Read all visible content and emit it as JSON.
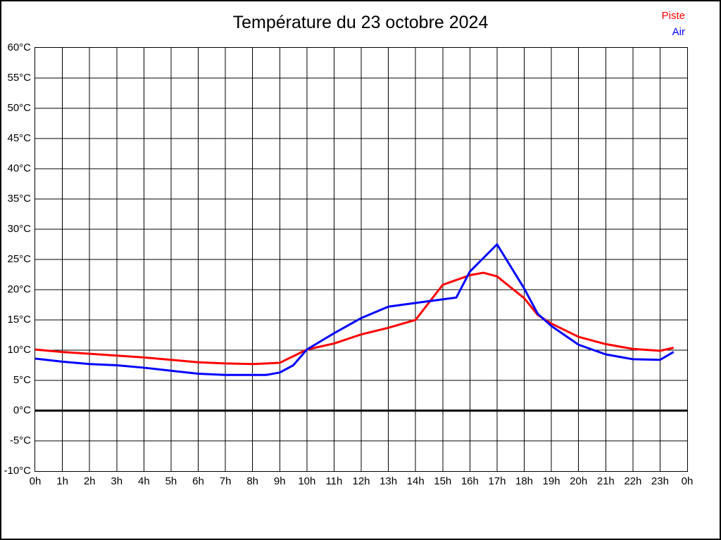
{
  "page": {
    "title": "Température du 23 octobre 2024"
  },
  "legend": [
    {
      "label": "Piste",
      "color": "#ff0000"
    },
    {
      "label": "Air",
      "color": "#0000ff"
    }
  ],
  "chart_data": {
    "type": "line",
    "title": "Température du 23 octobre 2024",
    "xlabel": "",
    "ylabel": "",
    "xlim": [
      0,
      24
    ],
    "ylim": [
      -10,
      60
    ],
    "grid": true,
    "grid_color": "#000000",
    "zero_line_bold": true,
    "legend_position": "top-right",
    "x_ticks": [
      0,
      1,
      2,
      3,
      4,
      5,
      6,
      7,
      8,
      9,
      10,
      11,
      12,
      13,
      14,
      15,
      16,
      17,
      18,
      19,
      20,
      21,
      22,
      23,
      24
    ],
    "x_tick_labels": [
      "0h",
      "1h",
      "2h",
      "3h",
      "4h",
      "5h",
      "6h",
      "7h",
      "8h",
      "9h",
      "10h",
      "11h",
      "12h",
      "13h",
      "14h",
      "15h",
      "16h",
      "17h",
      "18h",
      "19h",
      "20h",
      "21h",
      "22h",
      "23h",
      "0h"
    ],
    "y_ticks": [
      60,
      55,
      50,
      45,
      40,
      35,
      30,
      25,
      20,
      15,
      10,
      5,
      0,
      -5,
      -10
    ],
    "y_tick_labels": [
      "60°C",
      "55°C",
      "50°C",
      "45°C",
      "40°C",
      "35°C",
      "30°C",
      "25°C",
      "20°C",
      "15°C",
      "10°C",
      "5°C",
      "0°C",
      "-5°C",
      "-10°C"
    ],
    "series": [
      {
        "name": "Piste",
        "color": "#ff0000",
        "points": [
          [
            0,
            10.1
          ],
          [
            1,
            9.7
          ],
          [
            2,
            9.4
          ],
          [
            3,
            9.1
          ],
          [
            4,
            8.8
          ],
          [
            5,
            8.4
          ],
          [
            6,
            8.0
          ],
          [
            7,
            7.8
          ],
          [
            8,
            7.7
          ],
          [
            9,
            7.9
          ],
          [
            9.5,
            9.0
          ],
          [
            10,
            10.1
          ],
          [
            11,
            11.1
          ],
          [
            12,
            12.6
          ],
          [
            13,
            13.7
          ],
          [
            14,
            15.0
          ],
          [
            15,
            20.8
          ],
          [
            16,
            22.4
          ],
          [
            16.5,
            22.8
          ],
          [
            17,
            22.2
          ],
          [
            18,
            18.6
          ],
          [
            18.5,
            15.8
          ],
          [
            19,
            14.4
          ],
          [
            20,
            12.2
          ],
          [
            21,
            11.0
          ],
          [
            22,
            10.2
          ],
          [
            23,
            9.9
          ],
          [
            23.5,
            10.4
          ]
        ]
      },
      {
        "name": "Air",
        "color": "#0000ff",
        "points": [
          [
            0,
            8.6
          ],
          [
            1,
            8.1
          ],
          [
            2,
            7.7
          ],
          [
            3,
            7.5
          ],
          [
            4,
            7.1
          ],
          [
            5,
            6.6
          ],
          [
            6,
            6.1
          ],
          [
            7,
            5.9
          ],
          [
            8,
            5.9
          ],
          [
            8.5,
            5.9
          ],
          [
            9,
            6.3
          ],
          [
            9.5,
            7.5
          ],
          [
            10,
            10.1
          ],
          [
            11,
            12.8
          ],
          [
            12,
            15.3
          ],
          [
            13,
            17.2
          ],
          [
            14,
            17.8
          ],
          [
            15,
            18.4
          ],
          [
            15.5,
            18.7
          ],
          [
            16,
            23.0
          ],
          [
            17,
            27.5
          ],
          [
            18,
            20.2
          ],
          [
            18.5,
            16.0
          ],
          [
            19,
            14.0
          ],
          [
            20,
            10.9
          ],
          [
            21,
            9.3
          ],
          [
            22,
            8.5
          ],
          [
            23,
            8.4
          ],
          [
            23.5,
            9.7
          ]
        ]
      }
    ]
  }
}
